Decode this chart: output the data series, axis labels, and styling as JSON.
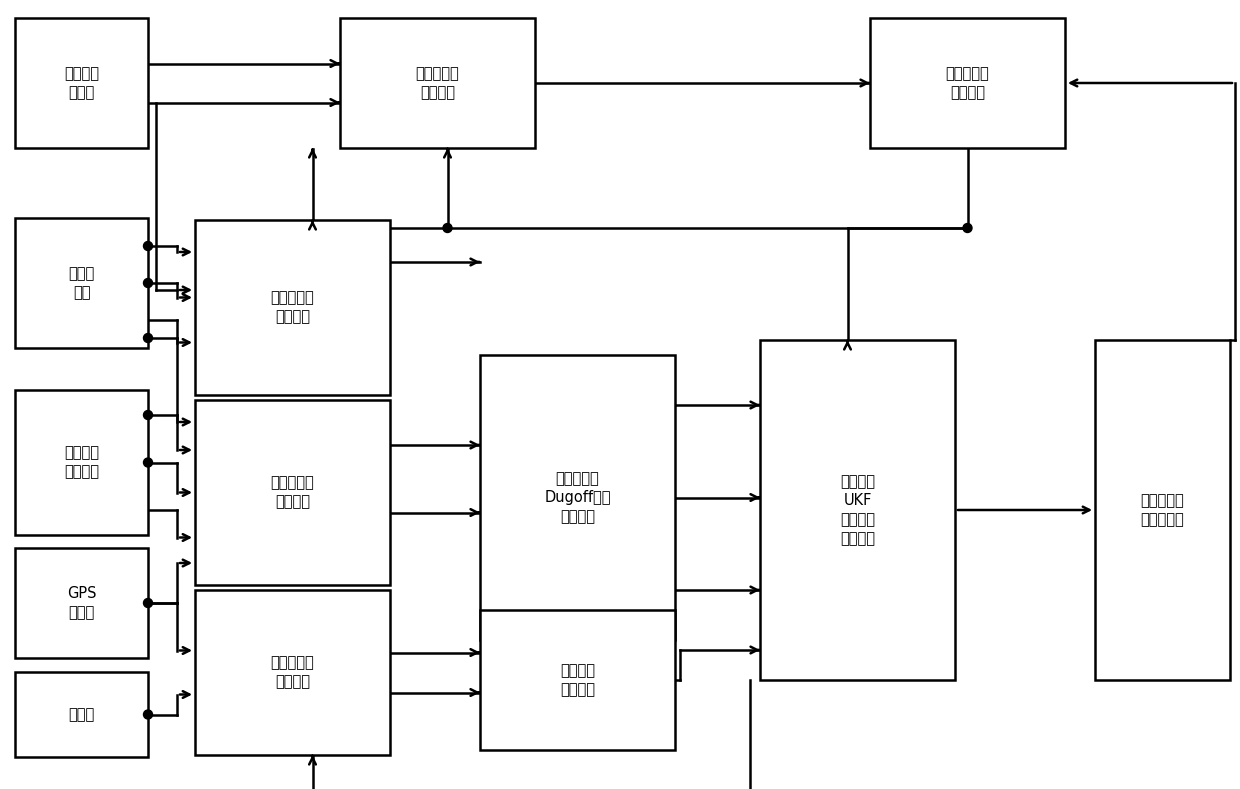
{
  "figw": 12.4,
  "figh": 7.89,
  "dpi": 100,
  "lw": 1.8,
  "arrow_scale": 12,
  "dot_r": 4.5,
  "fontsize": 10.5,
  "linespacing": 1.35,
  "boxes": {
    "s1": [
      15,
      18,
      133,
      130,
      "驱动力矩\n传感器"
    ],
    "s2": [
      15,
      218,
      133,
      130,
      "轮速传\n感器"
    ],
    "s3": [
      15,
      390,
      133,
      145,
      "转向盘转\n角传感器"
    ],
    "s4": [
      15,
      548,
      133,
      110,
      "GPS\n车速计"
    ],
    "s5": [
      15,
      672,
      133,
      85,
      "陀螺仪"
    ],
    "wr": [
      340,
      18,
      195,
      130,
      "车轮旋转动\n力学模块"
    ],
    "sr": [
      195,
      220,
      195,
      175,
      "车轮滑转率\n计算模块"
    ],
    "sa": [
      195,
      400,
      195,
      185,
      "车轮侧偏角\n计算模块"
    ],
    "vf": [
      195,
      590,
      195,
      165,
      "车轮垂向力\n计算模块"
    ],
    "dg": [
      480,
      355,
      195,
      285,
      "变形处理的\nDugoff轮胎\n模型模块"
    ],
    "ar": [
      480,
      610,
      195,
      140,
      "空气阻力\n计算模块"
    ],
    "ukf": [
      760,
      340,
      195,
      340,
      "渐消记忆\nUKF\n参数估计\n算法模块"
    ],
    "fb": [
      870,
      18,
      195,
      130,
      "纵向力反馈\n修正模块"
    ],
    "out": [
      1095,
      340,
      135,
      340,
      "车轮纵侧向\n力计算模块"
    ]
  }
}
